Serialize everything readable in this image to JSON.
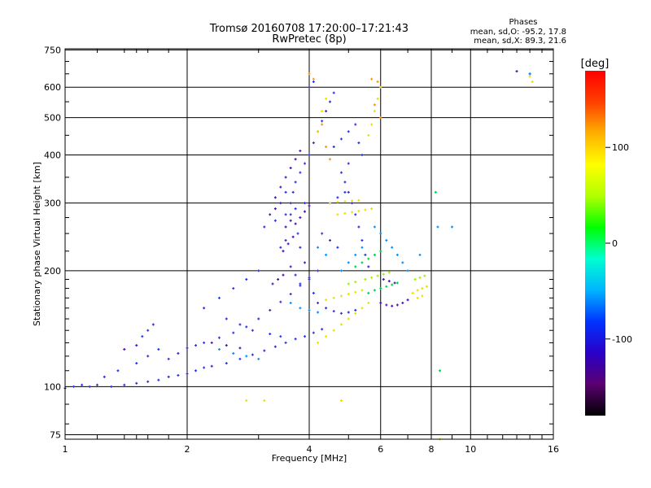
{
  "chart_data": {
    "type": "scatter",
    "title": "Tromsø 20160708 17:20:00–17:21:43",
    "subtitle": "RwPretec (8p)",
    "xlabel": "Frequency [MHz]",
    "ylabel": "Stationary phase Virtual Height [km]",
    "x_scale": "log",
    "y_scale": "log",
    "xlim": [
      1,
      16
    ],
    "ylim": [
      73,
      755
    ],
    "x_ticks": [
      1,
      2,
      4,
      6,
      8,
      10,
      16
    ],
    "x_tick_labels": [
      "1",
      "2",
      "4",
      "6",
      "8",
      "10",
      "16"
    ],
    "y_ticks": [
      75,
      100,
      200,
      300,
      400,
      500,
      600,
      750
    ],
    "y_tick_labels": [
      "75",
      "100",
      "200",
      "300",
      "400",
      "500",
      "600",
      "750"
    ],
    "grid": true,
    "stats": {
      "heading": "Phases",
      "line_o": "mean, sd,O: -95.2, 17.8",
      "line_x": "mean, sd,X:  89.3, 21.6"
    },
    "colorbar": {
      "label": "[deg]",
      "range": [
        -180,
        180
      ],
      "ticks": [
        100,
        0,
        -100
      ],
      "tick_labels": [
        "100",
        "0",
        "-100"
      ],
      "colors": [
        "#000000",
        "#5a0070",
        "#2a00c8",
        "#0033ff",
        "#00b4ff",
        "#00ffd0",
        "#00ff00",
        "#b0ff00",
        "#ffff00",
        "#ffb000",
        "#ff4000",
        "#ff0000"
      ]
    },
    "series": [
      {
        "phase": -100,
        "color": "#2a30e0",
        "points": [
          [
            1.0,
            99
          ],
          [
            1.05,
            100
          ],
          [
            1.1,
            101
          ],
          [
            1.15,
            100
          ],
          [
            1.2,
            101
          ],
          [
            1.3,
            100
          ],
          [
            1.4,
            101
          ],
          [
            1.5,
            102
          ],
          [
            1.6,
            103
          ],
          [
            1.7,
            104
          ],
          [
            1.8,
            106
          ],
          [
            1.9,
            107
          ],
          [
            2.0,
            108
          ],
          [
            2.1,
            110
          ],
          [
            2.2,
            112
          ],
          [
            2.3,
            113
          ],
          [
            2.5,
            115
          ],
          [
            2.7,
            118
          ],
          [
            2.9,
            121
          ],
          [
            3.1,
            124
          ],
          [
            3.3,
            127
          ],
          [
            3.5,
            130
          ],
          [
            3.7,
            133
          ],
          [
            3.9,
            135
          ],
          [
            4.1,
            138
          ],
          [
            4.3,
            141
          ],
          [
            1.25,
            106
          ],
          [
            1.35,
            110
          ],
          [
            1.5,
            115
          ],
          [
            1.6,
            120
          ],
          [
            1.7,
            125
          ],
          [
            1.8,
            118
          ],
          [
            1.9,
            122
          ],
          [
            2.0,
            126
          ],
          [
            2.1,
            128
          ],
          [
            2.2,
            130
          ],
          [
            2.4,
            134
          ],
          [
            2.6,
            138
          ],
          [
            2.8,
            143
          ],
          [
            3.0,
            150
          ],
          [
            3.2,
            158
          ],
          [
            3.4,
            166
          ],
          [
            3.6,
            174
          ],
          [
            3.8,
            183
          ],
          [
            4.0,
            192
          ],
          [
            4.2,
            200
          ],
          [
            3.1,
            260
          ],
          [
            3.3,
            270
          ],
          [
            3.5,
            280
          ],
          [
            3.7,
            290
          ],
          [
            3.9,
            300
          ],
          [
            3.5,
            320
          ],
          [
            3.7,
            340
          ],
          [
            3.8,
            360
          ],
          [
            3.9,
            380
          ],
          [
            4.0,
            400
          ],
          [
            4.1,
            430
          ],
          [
            4.2,
            460
          ],
          [
            4.3,
            490
          ],
          [
            4.4,
            520
          ],
          [
            4.5,
            550
          ],
          [
            4.6,
            580
          ],
          [
            4.0,
            600
          ],
          [
            4.1,
            620
          ],
          [
            3.6,
            280
          ],
          [
            3.6,
            300
          ],
          [
            3.65,
            320
          ],
          [
            3.75,
            250
          ],
          [
            3.8,
            230
          ],
          [
            3.9,
            210
          ],
          [
            4.0,
            190
          ],
          [
            4.1,
            175
          ],
          [
            4.2,
            165
          ],
          [
            4.4,
            160
          ],
          [
            4.6,
            157
          ],
          [
            4.8,
            155
          ],
          [
            5.0,
            156
          ],
          [
            5.2,
            158
          ],
          [
            4.6,
            420
          ],
          [
            4.8,
            440
          ],
          [
            5.0,
            460
          ],
          [
            5.2,
            480
          ],
          [
            5.3,
            430
          ],
          [
            5.4,
            400
          ],
          [
            5.0,
            380
          ],
          [
            4.8,
            360
          ],
          [
            4.9,
            340
          ],
          [
            5.0,
            320
          ],
          [
            5.1,
            300
          ],
          [
            5.2,
            280
          ],
          [
            5.3,
            260
          ],
          [
            5.4,
            240
          ],
          [
            5.5,
            220
          ],
          [
            5.6,
            205
          ],
          [
            3.4,
            230
          ],
          [
            3.5,
            240
          ],
          [
            3.6,
            205
          ],
          [
            3.7,
            195
          ],
          [
            3.8,
            185
          ],
          [
            4.3,
            250
          ],
          [
            4.5,
            240
          ],
          [
            4.7,
            230
          ],
          [
            1.55,
            135
          ],
          [
            1.6,
            140
          ],
          [
            1.65,
            145
          ],
          [
            2.2,
            160
          ],
          [
            2.4,
            170
          ],
          [
            2.6,
            180
          ],
          [
            2.8,
            190
          ],
          [
            3.0,
            200
          ],
          [
            2.5,
            150
          ],
          [
            2.7,
            145
          ],
          [
            2.9,
            140
          ],
          [
            3.2,
            137
          ],
          [
            3.4,
            135
          ],
          [
            4.5,
            300
          ],
          [
            4.7,
            310
          ],
          [
            4.9,
            320
          ]
        ]
      },
      {
        "phase": -120,
        "color": "#4a10b0",
        "points": [
          [
            3.2,
            280
          ],
          [
            3.3,
            290
          ],
          [
            3.4,
            300
          ],
          [
            3.3,
            310
          ],
          [
            3.4,
            330
          ],
          [
            3.5,
            350
          ],
          [
            3.6,
            370
          ],
          [
            3.7,
            390
          ],
          [
            3.8,
            410
          ],
          [
            3.5,
            260
          ],
          [
            3.6,
            270
          ],
          [
            3.7,
            265
          ],
          [
            3.8,
            275
          ],
          [
            3.9,
            285
          ],
          [
            4.0,
            295
          ],
          [
            3.45,
            225
          ],
          [
            3.55,
            235
          ],
          [
            3.65,
            245
          ],
          [
            3.25,
            185
          ],
          [
            3.35,
            190
          ],
          [
            3.45,
            195
          ],
          [
            6.0,
            165
          ],
          [
            6.2,
            163
          ],
          [
            6.4,
            162
          ],
          [
            6.6,
            163
          ],
          [
            6.8,
            165
          ],
          [
            7.0,
            168
          ],
          [
            6.1,
            190
          ],
          [
            6.3,
            188
          ],
          [
            6.5,
            186
          ],
          [
            2.3,
            130
          ],
          [
            2.5,
            128
          ],
          [
            2.7,
            126
          ],
          [
            1.4,
            125
          ],
          [
            1.5,
            128
          ],
          [
            13.0,
            660
          ],
          [
            14.0,
            650
          ]
        ]
      },
      {
        "phase": -60,
        "color": "#0090ff",
        "points": [
          [
            2.4,
            125
          ],
          [
            2.6,
            122
          ],
          [
            2.8,
            120
          ],
          [
            3.0,
            118
          ],
          [
            3.6,
            165
          ],
          [
            3.8,
            160
          ],
          [
            4.0,
            158
          ],
          [
            4.2,
            156
          ],
          [
            5.8,
            260
          ],
          [
            6.0,
            250
          ],
          [
            6.2,
            240
          ],
          [
            6.4,
            230
          ],
          [
            6.6,
            220
          ],
          [
            6.8,
            210
          ],
          [
            7.0,
            200
          ],
          [
            4.8,
            200
          ],
          [
            5.0,
            210
          ],
          [
            5.2,
            220
          ],
          [
            5.4,
            230
          ],
          [
            4.2,
            230
          ],
          [
            4.4,
            220
          ],
          [
            8.3,
            260
          ],
          [
            9.0,
            260
          ],
          [
            7.5,
            220
          ],
          [
            14.0,
            650
          ]
        ]
      },
      {
        "phase": 0,
        "color": "#00d040",
        "points": [
          [
            5.6,
            175
          ],
          [
            5.8,
            178
          ],
          [
            6.0,
            180
          ],
          [
            6.2,
            182
          ],
          [
            6.4,
            184
          ],
          [
            6.6,
            186
          ],
          [
            5.2,
            205
          ],
          [
            5.4,
            210
          ],
          [
            5.6,
            215
          ],
          [
            5.8,
            220
          ],
          [
            6.0,
            225
          ],
          [
            8.2,
            320
          ],
          [
            8.4,
            110
          ]
        ]
      },
      {
        "phase": 100,
        "color": "#e8e000",
        "points": [
          [
            4.4,
            168
          ],
          [
            4.6,
            170
          ],
          [
            4.8,
            172
          ],
          [
            5.0,
            174
          ],
          [
            5.2,
            176
          ],
          [
            5.4,
            178
          ],
          [
            4.2,
            130
          ],
          [
            4.4,
            135
          ],
          [
            4.6,
            140
          ],
          [
            4.8,
            145
          ],
          [
            5.0,
            150
          ],
          [
            5.2,
            155
          ],
          [
            5.4,
            160
          ],
          [
            5.6,
            165
          ],
          [
            4.7,
            280
          ],
          [
            4.9,
            282
          ],
          [
            5.1,
            284
          ],
          [
            5.3,
            286
          ],
          [
            5.5,
            288
          ],
          [
            5.7,
            290
          ],
          [
            4.5,
            300
          ],
          [
            4.7,
            302
          ],
          [
            4.9,
            303
          ],
          [
            5.1,
            304
          ],
          [
            5.3,
            305
          ],
          [
            4.2,
            460
          ],
          [
            4.3,
            520
          ],
          [
            4.4,
            560
          ],
          [
            5.6,
            450
          ],
          [
            5.7,
            480
          ],
          [
            5.8,
            520
          ],
          [
            5.9,
            560
          ],
          [
            6.0,
            600
          ],
          [
            7.2,
            175
          ],
          [
            7.4,
            178
          ],
          [
            7.6,
            180
          ],
          [
            7.8,
            182
          ],
          [
            7.4,
            170
          ],
          [
            7.6,
            172
          ],
          [
            4.8,
            92
          ],
          [
            2.8,
            92
          ],
          [
            3.1,
            92
          ],
          [
            8.4,
            73
          ],
          [
            14.0,
            640
          ],
          [
            14.2,
            620
          ]
        ]
      },
      {
        "phase": 140,
        "color": "#ff9000",
        "points": [
          [
            4.0,
            650
          ],
          [
            4.1,
            630
          ],
          [
            5.7,
            630
          ],
          [
            5.9,
            620
          ],
          [
            5.8,
            540
          ],
          [
            6.0,
            500
          ],
          [
            4.3,
            480
          ],
          [
            4.4,
            420
          ],
          [
            4.5,
            390
          ]
        ]
      },
      {
        "phase": 40,
        "color": "#a0f000",
        "points": [
          [
            5.5,
            190
          ],
          [
            5.7,
            192
          ],
          [
            5.9,
            194
          ],
          [
            6.1,
            196
          ],
          [
            6.3,
            198
          ],
          [
            7.3,
            190
          ],
          [
            7.5,
            192
          ],
          [
            7.7,
            194
          ],
          [
            5.0,
            185
          ],
          [
            5.2,
            187
          ]
        ]
      }
    ]
  }
}
